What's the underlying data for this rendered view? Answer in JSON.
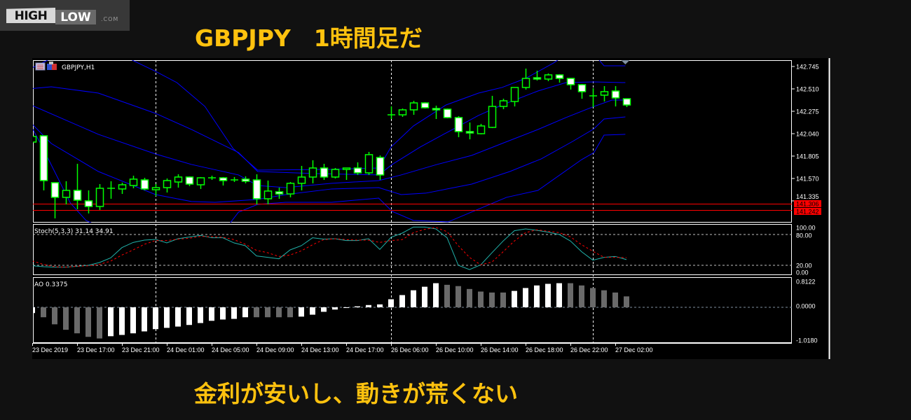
{
  "logo": {
    "high": "HIGH",
    "low": "LOW",
    "com": ".COM"
  },
  "title": "GBPJPY　1時間足だ",
  "caption": "金利が安いし、動きが荒くない",
  "colors": {
    "title": "#ffc20e",
    "candle_outline": "#00ff00",
    "bear_fill": "#ffffff",
    "bull_fill": "#000000",
    "bands": "#0000ff",
    "stoch_main": "#20b2aa",
    "stoch_signal": "#ff0000",
    "ao_up": "#ffffff",
    "ao_down": "#6a6a6a",
    "level_line": "#ff0000"
  },
  "chart_data": [
    {
      "type": "candlestick",
      "symbol_label": "GBPJPY,H1",
      "icons": [
        "chart-window-icon",
        "expert-icon"
      ],
      "ylim": [
        141.107,
        142.811
      ],
      "y_ticks": [
        142.745,
        142.51,
        142.275,
        142.04,
        141.805,
        141.57,
        141.335
      ],
      "y_tick_labels": [
        "142.745",
        "142.510",
        "142.275",
        "142.040",
        "141.805",
        "141.570",
        "141.335"
      ],
      "x_ticks": [
        0,
        4,
        8,
        12,
        16,
        20,
        24,
        28,
        32,
        36,
        40,
        44,
        48,
        52
      ],
      "x_tick_labels": [
        "23 Dec 2019",
        "23 Dec 17:00",
        "23 Dec 21:00",
        "24 Dec 01:00",
        "24 Dec 05:00",
        "24 Dec 09:00",
        "24 Dec 13:00",
        "24 Dec 17:00",
        "26 Dec 06:00",
        "26 Dec 10:00",
        "26 Dec 14:00",
        "26 Dec 18:00",
        "26 Dec 22:00",
        "27 Dec 02:00"
      ],
      "day_separators": [
        11,
        32,
        50
      ],
      "ohlc_order": [
        "open",
        "high",
        "low",
        "close"
      ],
      "candles": [
        [
          141.952,
          142.011,
          141.952,
          142.011
        ],
        [
          142.018,
          142.018,
          141.445,
          141.548
        ],
        [
          141.526,
          141.526,
          141.151,
          141.372
        ],
        [
          141.372,
          141.541,
          141.298,
          141.445
        ],
        [
          141.445,
          141.724,
          141.247,
          141.342
        ],
        [
          141.335,
          141.445,
          141.203,
          141.276
        ],
        [
          141.276,
          141.511,
          141.24,
          141.467
        ],
        [
          141.467,
          141.541,
          141.357,
          141.467
        ],
        [
          141.46,
          141.526,
          141.408,
          141.504
        ],
        [
          141.496,
          141.599,
          141.467,
          141.563
        ],
        [
          141.555,
          141.577,
          141.445,
          141.46
        ],
        [
          141.452,
          141.511,
          141.386,
          141.474
        ],
        [
          141.474,
          141.57,
          141.423,
          141.548
        ],
        [
          141.533,
          141.614,
          141.474,
          141.585
        ],
        [
          141.585,
          141.592,
          141.489,
          141.511
        ],
        [
          141.504,
          141.585,
          141.46,
          141.577
        ],
        [
          141.577,
          141.599,
          141.555,
          141.577
        ],
        [
          141.577,
          141.585,
          141.496,
          141.548
        ],
        [
          141.555,
          141.585,
          141.533,
          141.555
        ],
        [
          141.563,
          141.592,
          141.519,
          141.541
        ],
        [
          141.555,
          141.614,
          141.298,
          141.357
        ],
        [
          141.357,
          141.548,
          141.298,
          141.438
        ],
        [
          141.43,
          141.474,
          141.357,
          141.408
        ],
        [
          141.408,
          141.533,
          141.372,
          141.519
        ],
        [
          141.519,
          141.702,
          141.445,
          141.585
        ],
        [
          141.585,
          141.761,
          141.519,
          141.68
        ],
        [
          141.68,
          141.724,
          141.555,
          141.585
        ],
        [
          141.585,
          141.68,
          141.57,
          141.665
        ],
        [
          141.665,
          141.68,
          141.555,
          141.68
        ],
        [
          141.68,
          141.739,
          141.607,
          141.629
        ],
        [
          141.629,
          141.849,
          141.607,
          141.82
        ],
        [
          141.79,
          141.812,
          141.555,
          141.607
        ],
        [
          142.238,
          142.326,
          142.194,
          142.238
        ],
        [
          142.238,
          142.304,
          142.216,
          142.29
        ],
        [
          142.29,
          142.385,
          142.238,
          142.363
        ],
        [
          142.363,
          142.37,
          142.304,
          142.312
        ],
        [
          142.304,
          142.334,
          142.194,
          142.29
        ],
        [
          142.297,
          142.304,
          142.202,
          142.209
        ],
        [
          142.209,
          142.224,
          142.003,
          142.062
        ],
        [
          142.062,
          142.157,
          141.981,
          142.047
        ],
        [
          142.04,
          142.143,
          142.033,
          142.121
        ],
        [
          142.106,
          142.437,
          142.099,
          142.326
        ],
        [
          142.326,
          142.407,
          142.297,
          142.385
        ],
        [
          142.378,
          142.525,
          142.326,
          142.525
        ],
        [
          142.525,
          142.723,
          142.503,
          142.62
        ],
        [
          142.627,
          142.701,
          142.598,
          142.613
        ],
        [
          142.613,
          142.672,
          142.591,
          142.657
        ],
        [
          142.657,
          142.664,
          142.576,
          142.62
        ],
        [
          142.62,
          142.62,
          142.503,
          142.554
        ],
        [
          142.554,
          142.561,
          142.407,
          142.481
        ],
        [
          142.437,
          142.517,
          142.319,
          142.437
        ],
        [
          142.444,
          142.539,
          142.378,
          142.481
        ],
        [
          142.488,
          142.539,
          142.326,
          142.415
        ],
        [
          142.407,
          142.407,
          142.319,
          142.341
        ]
      ],
      "bands": [
        {
          "points": [
            [
              -0.4,
              142.708
            ],
            [
              3.4,
              142.929
            ],
            [
              6.5,
              142.914
            ],
            [
              8.8,
              142.818
            ],
            [
              11.0,
              142.694
            ],
            [
              12.9,
              142.576
            ],
            [
              15.4,
              142.326
            ],
            [
              17.9,
              141.886
            ],
            [
              20.1,
              141.658
            ],
            [
              26.5,
              141.665
            ],
            [
              30.9,
              141.68
            ],
            [
              32.0,
              141.9
            ],
            [
              34.0,
              142.121
            ],
            [
              36.9,
              142.341
            ],
            [
              39.8,
              142.466
            ],
            [
              41.9,
              142.525
            ],
            [
              44.0,
              142.62
            ],
            [
              46.5,
              142.782
            ],
            [
              47.4,
              142.855
            ]
          ]
        },
        {
          "points": [
            [
              50.25,
              142.855
            ],
            [
              51.0,
              142.752
            ],
            [
              52.9,
              142.752
            ]
          ]
        },
        {
          "points": [
            [
              -0.4,
              142.51
            ],
            [
              1.7,
              142.532
            ],
            [
              5.9,
              142.466
            ],
            [
              11.0,
              142.253
            ],
            [
              14.2,
              142.084
            ],
            [
              18.4,
              141.842
            ],
            [
              20.1,
              141.643
            ],
            [
              25.3,
              141.621
            ],
            [
              30.9,
              141.607
            ],
            [
              32.1,
              141.717
            ],
            [
              34.6,
              141.9
            ],
            [
              36.9,
              142.047
            ],
            [
              39.8,
              142.231
            ],
            [
              41.9,
              142.341
            ],
            [
              45.1,
              142.488
            ],
            [
              47.6,
              142.576
            ],
            [
              50.1,
              142.583
            ],
            [
              52.9,
              142.576
            ]
          ]
        },
        {
          "points": [
            [
              -0.4,
              142.356
            ],
            [
              5.9,
              142.033
            ],
            [
              11.0,
              141.827
            ],
            [
              14.2,
              141.717
            ],
            [
              18.4,
              141.607
            ],
            [
              20.1,
              141.496
            ],
            [
              22.6,
              141.474
            ],
            [
              26.7,
              141.519
            ],
            [
              30.9,
              141.548
            ],
            [
              32.9,
              141.607
            ],
            [
              36.1,
              141.717
            ],
            [
              39.2,
              141.812
            ],
            [
              41.9,
              141.937
            ],
            [
              45.1,
              142.084
            ],
            [
              47.6,
              142.209
            ],
            [
              50.1,
              142.326
            ],
            [
              51.7,
              142.392
            ],
            [
              52.9,
              142.392
            ]
          ]
        },
        {
          "points": [
            [
              -0.4,
              142.187
            ],
            [
              1.7,
              141.937
            ],
            [
              5.9,
              141.643
            ],
            [
              11.0,
              141.401
            ],
            [
              14.2,
              141.328
            ],
            [
              16.3,
              141.32
            ],
            [
              20.1,
              141.35
            ],
            [
              22.6,
              141.401
            ],
            [
              26.7,
              141.46
            ],
            [
              30.9,
              141.474
            ],
            [
              32.9,
              141.401
            ],
            [
              35.1,
              141.416
            ],
            [
              39.2,
              141.511
            ],
            [
              42.6,
              141.643
            ],
            [
              45.4,
              141.776
            ],
            [
              48.2,
              141.959
            ],
            [
              50.1,
              142.091
            ],
            [
              51.0,
              142.194
            ],
            [
              52.9,
              142.216
            ]
          ]
        },
        {
          "points": [
            [
              -0.4,
              142.187
            ],
            [
              0.9,
              141.9
            ],
            [
              3.4,
              141.313
            ],
            [
              4.8,
              141.129
            ],
            [
              6.9,
              141.019
            ],
            [
              17.1,
              141.019
            ],
            [
              18.4,
              141.217
            ],
            [
              20.1,
              141.298
            ],
            [
              22.6,
              141.32
            ],
            [
              26.7,
              141.32
            ],
            [
              30.9,
              141.364
            ],
            [
              32.1,
              141.225
            ],
            [
              34.0,
              141.129
            ],
            [
              37.1,
              141.115
            ],
            [
              42.3,
              141.372
            ],
            [
              45.1,
              141.445
            ],
            [
              49.0,
              141.768
            ],
            [
              50.1,
              141.842
            ],
            [
              51.0,
              142.025
            ],
            [
              52.9,
              142.033
            ]
          ]
        }
      ],
      "horizontal_lines": [
        {
          "value": 141.306,
          "label": "141.306"
        },
        {
          "value": 141.242,
          "label": "141.242"
        }
      ],
      "marker": {
        "type": "down-triangle",
        "x": 52.9
      }
    },
    {
      "type": "line",
      "label": "Stoch(5,3,3) 31.14 34.91",
      "ylim": [
        0,
        100
      ],
      "levels": [
        80,
        20
      ],
      "y_tick_labels": [
        "100.00",
        "80.00",
        "20.00",
        "0.00"
      ],
      "series": [
        {
          "values": [
            19.1,
            17.3,
            16.4,
            16.4,
            18.2,
            20,
            25.5,
            34.5,
            54.5,
            64.5,
            69.1,
            70.5,
            63.6,
            71.8,
            75,
            78.2,
            73.6,
            73.6,
            63.6,
            58.2,
            38.2,
            35.5,
            32.7,
            50,
            58.2,
            73.6,
            70.9,
            71.8,
            68.2,
            68.2,
            71.8,
            50.9,
            74.5,
            82.7,
            94.5,
            94.5,
            90.9,
            73.6,
            20,
            11.8,
            20.9,
            44.5,
            67.3,
            87.3,
            90.9,
            88.2,
            84.5,
            80,
            67.3,
            46.4,
            30,
            35.5,
            37.3,
            31.1
          ]
        },
        {
          "values": [
            28.6,
            21.8,
            17.3,
            16.4,
            18.2,
            19.1,
            21.8,
            28.2,
            40,
            50,
            60.9,
            68.2,
            68.2,
            70.9,
            72.7,
            76.4,
            75.5,
            74.5,
            70,
            60.9,
            49.1,
            44.5,
            37.3,
            40,
            48.2,
            60,
            70,
            71.8,
            70,
            69.1,
            69.1,
            64.5,
            68.2,
            70,
            83.6,
            90,
            93.6,
            85.5,
            58.2,
            35.5,
            20.9,
            26.4,
            46.4,
            67.3,
            83.6,
            89.1,
            86.4,
            83.6,
            75.5,
            60,
            47.3,
            35.5,
            35.5,
            34.9
          ],
          "style": "dashed"
        }
      ]
    },
    {
      "type": "bar",
      "label": "AO 0.3375",
      "ylim": [
        -1.018,
        0.8122
      ],
      "y_tick_labels": [
        "0.8122",
        "0.0000",
        "-1.0180"
      ],
      "values": [
        -0.18,
        -0.31,
        -0.53,
        -0.7,
        -0.81,
        -0.92,
        -0.97,
        -0.9,
        -0.86,
        -0.81,
        -0.75,
        -0.68,
        -0.64,
        -0.6,
        -0.55,
        -0.49,
        -0.42,
        -0.38,
        -0.36,
        -0.31,
        -0.31,
        -0.31,
        -0.31,
        -0.31,
        -0.29,
        -0.23,
        -0.14,
        -0.07,
        -0.005,
        0.03,
        0.07,
        0.09,
        0.25,
        0.38,
        0.53,
        0.64,
        0.75,
        0.7,
        0.66,
        0.57,
        0.49,
        0.46,
        0.46,
        0.51,
        0.6,
        0.68,
        0.73,
        0.75,
        0.75,
        0.68,
        0.6,
        0.53,
        0.46,
        0.34
      ]
    }
  ]
}
